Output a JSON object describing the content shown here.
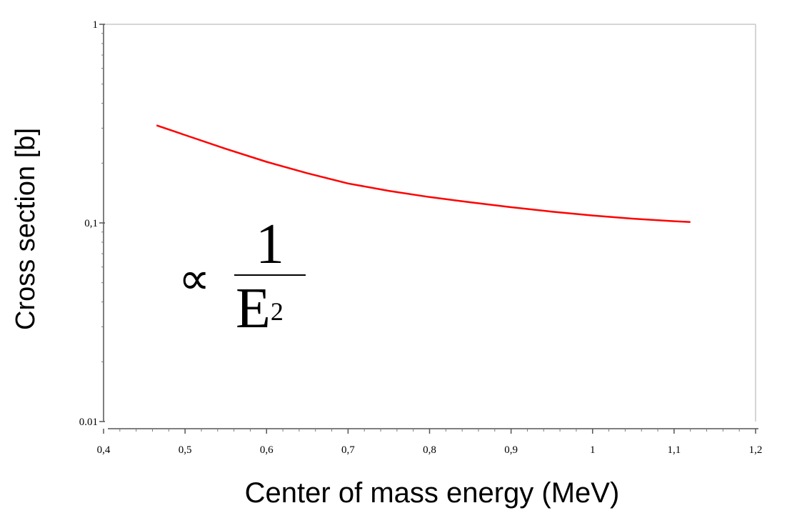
{
  "chart_data": {
    "type": "line",
    "title": "",
    "xlabel": "Center of mass energy  (MeV)",
    "ylabel": "Cross section [b]",
    "xlim": [
      0.4,
      1.2
    ],
    "ylim": [
      0.01,
      1
    ],
    "yscale": "log",
    "grid": false,
    "x_ticks": [
      "0,4",
      "0,5",
      "0,6",
      "0,7",
      "0,8",
      "0,9",
      "1",
      "1,1",
      "1,2"
    ],
    "y_ticks": [
      "0.01",
      "0,1",
      "1"
    ],
    "series": [
      {
        "color": "#ff0000",
        "x": [
          0.465,
          0.5,
          0.55,
          0.6,
          0.65,
          0.7,
          0.75,
          0.8,
          0.85,
          0.9,
          0.95,
          1.0,
          1.05,
          1.1,
          1.12
        ],
        "y": [
          0.31,
          0.277,
          0.236,
          0.203,
          0.178,
          0.158,
          0.145,
          0.135,
          0.127,
          0.12,
          0.114,
          0.109,
          0.105,
          0.102,
          0.101
        ]
      }
    ],
    "annotation": {
      "symbol": "∝",
      "numerator": "1",
      "denominator": "E",
      "exponent": "2"
    }
  }
}
